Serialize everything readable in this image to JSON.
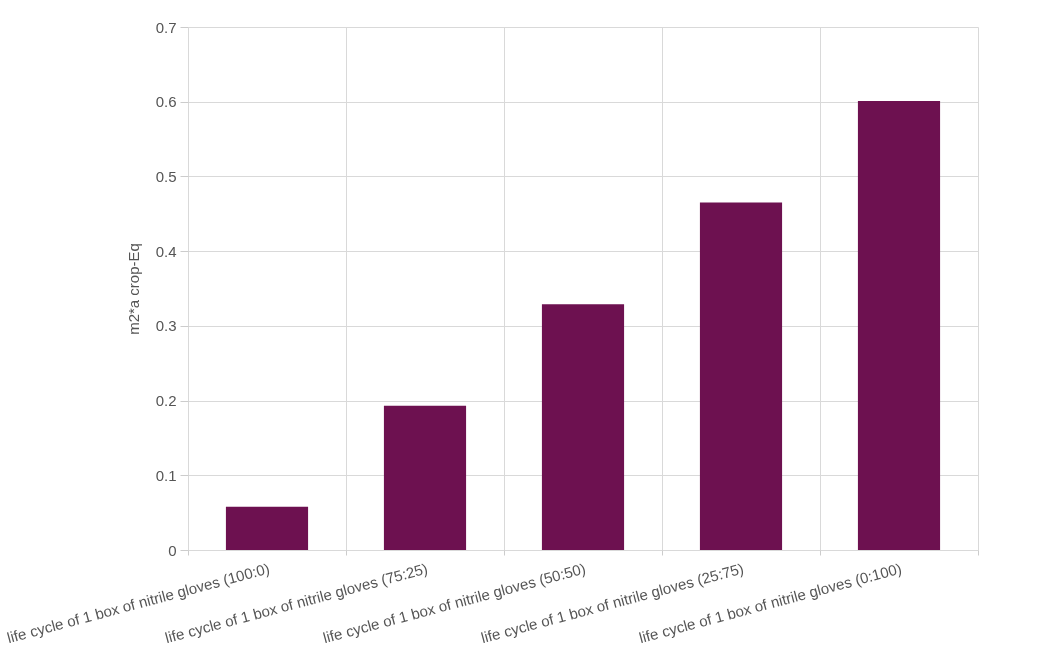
{
  "chart_data": {
    "type": "bar",
    "ylabel": "m2*a crop-Eq",
    "categories": [
      "life cycle of 1 box of nitrile gloves (100:0)",
      "life cycle of 1 box of nitrile gloves (75:25)",
      "life cycle of 1 box of nitrile gloves (50:50)",
      "life cycle of 1 box of nitrile gloves (25:75)",
      "life cycle of 1 box of nitrile gloves (0:100)"
    ],
    "values": [
      0.058,
      0.193,
      0.329,
      0.465,
      0.601
    ],
    "color": "#6d1150",
    "ylim": [
      0,
      0.7
    ],
    "yticks": [
      0,
      0.1,
      0.2,
      0.3,
      0.4,
      0.5,
      0.6,
      0.7
    ],
    "grid": true
  }
}
